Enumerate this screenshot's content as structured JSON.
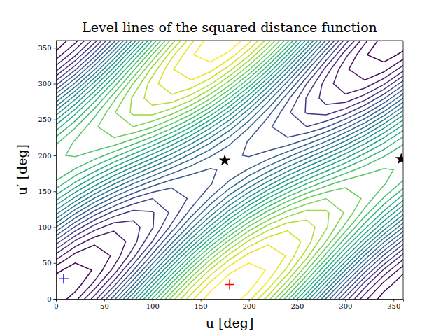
{
  "chart_data": {
    "type": "contour",
    "title": "Level lines of the squared distance function",
    "x_label": "u [deg]",
    "y_label": "u′ [deg]",
    "x": [
      0,
      20,
      40,
      60,
      80,
      100,
      120,
      140,
      160,
      180,
      200,
      220,
      240,
      260,
      280,
      300,
      320,
      340,
      360
    ],
    "y": [
      0,
      20,
      40,
      60,
      80,
      100,
      120,
      140,
      160,
      180,
      200,
      220,
      240,
      260,
      280,
      300,
      320,
      340,
      360
    ],
    "z": [
      [
        0.02,
        0.16,
        0.45,
        0.86,
        1.33,
        1.81,
        2.24,
        2.57,
        2.76,
        2.79,
        2.64,
        2.35,
        1.94,
        1.47,
        0.99,
        0.56,
        0.23,
        0.04,
        0.02
      ],
      [
        0.02,
        0.04,
        0.23,
        0.56,
        0.99,
        1.47,
        1.94,
        2.35,
        2.64,
        2.79,
        2.76,
        2.57,
        2.24,
        1.81,
        1.33,
        0.86,
        0.45,
        0.16,
        0.02
      ],
      [
        0.13,
        0.04,
        0.11,
        0.33,
        0.69,
        1.13,
        1.6,
        2.05,
        2.42,
        2.67,
        2.76,
        2.69,
        2.47,
        2.11,
        1.67,
        1.2,
        0.75,
        0.38,
        0.13
      ],
      [
        0.36,
        0.16,
        0.11,
        0.22,
        0.46,
        0.83,
        1.26,
        1.71,
        2.12,
        2.44,
        2.64,
        2.69,
        2.59,
        2.34,
        1.97,
        1.54,
        1.09,
        0.68,
        0.36
      ],
      [
        0.66,
        0.38,
        0.23,
        0.22,
        0.35,
        0.6,
        0.96,
        1.36,
        1.78,
        2.14,
        2.42,
        2.57,
        2.59,
        2.46,
        2.2,
        1.84,
        1.44,
        1.02,
        0.66
      ],
      [
        1.0,
        0.68,
        0.45,
        0.33,
        0.35,
        0.49,
        0.73,
        1.06,
        1.43,
        1.8,
        2.12,
        2.35,
        2.47,
        2.46,
        2.32,
        2.07,
        1.74,
        1.37,
        1.0
      ],
      [
        1.34,
        1.02,
        0.75,
        0.56,
        0.46,
        0.49,
        0.62,
        0.84,
        1.13,
        1.46,
        1.78,
        2.05,
        2.24,
        2.34,
        2.32,
        2.19,
        1.96,
        1.67,
        1.34
      ],
      [
        1.64,
        1.37,
        1.09,
        0.86,
        0.69,
        0.6,
        0.62,
        0.72,
        0.91,
        1.16,
        1.43,
        1.71,
        1.94,
        2.11,
        2.2,
        2.19,
        2.08,
        1.89,
        1.64
      ],
      [
        1.87,
        1.67,
        1.44,
        1.2,
        0.99,
        0.83,
        0.73,
        0.72,
        0.79,
        0.93,
        1.13,
        1.36,
        1.6,
        1.81,
        1.97,
        2.07,
        2.08,
        2.01,
        1.87
      ],
      [
        1.99,
        1.89,
        1.74,
        1.54,
        1.33,
        1.13,
        0.96,
        0.84,
        0.79,
        0.82,
        0.91,
        1.06,
        1.26,
        1.47,
        1.67,
        1.84,
        1.96,
        2.01,
        1.99
      ],
      [
        1.99,
        2.01,
        1.96,
        1.84,
        1.67,
        1.47,
        1.26,
        1.06,
        0.91,
        0.82,
        0.79,
        0.84,
        0.96,
        1.13,
        1.33,
        1.54,
        1.74,
        1.89,
        1.99
      ],
      [
        1.87,
        2.01,
        2.08,
        2.07,
        1.97,
        1.81,
        1.6,
        1.36,
        1.13,
        0.93,
        0.79,
        0.72,
        0.73,
        0.83,
        0.99,
        1.2,
        1.44,
        1.67,
        1.87
      ],
      [
        1.64,
        1.89,
        2.08,
        2.19,
        2.2,
        2.11,
        1.94,
        1.71,
        1.43,
        1.16,
        0.91,
        0.72,
        0.62,
        0.6,
        0.69,
        0.86,
        1.09,
        1.37,
        1.64
      ],
      [
        1.34,
        1.67,
        1.96,
        2.19,
        2.32,
        2.34,
        2.24,
        2.05,
        1.78,
        1.46,
        1.13,
        0.84,
        0.62,
        0.49,
        0.46,
        0.56,
        0.75,
        1.02,
        1.34
      ],
      [
        1.0,
        1.37,
        1.74,
        2.07,
        2.32,
        2.46,
        2.47,
        2.35,
        2.12,
        1.8,
        1.43,
        1.06,
        0.73,
        0.49,
        0.35,
        0.33,
        0.45,
        0.68,
        1.0
      ],
      [
        0.66,
        1.02,
        1.44,
        1.84,
        2.2,
        2.46,
        2.59,
        2.57,
        2.42,
        2.14,
        1.78,
        1.36,
        0.96,
        0.6,
        0.35,
        0.22,
        0.23,
        0.38,
        0.66
      ],
      [
        0.36,
        0.68,
        1.09,
        1.54,
        1.97,
        2.34,
        2.59,
        2.69,
        2.64,
        2.44,
        2.12,
        1.71,
        1.26,
        0.83,
        0.46,
        0.22,
        0.11,
        0.16,
        0.36
      ],
      [
        0.13,
        0.38,
        0.75,
        1.2,
        1.67,
        2.11,
        2.47,
        2.69,
        2.76,
        2.67,
        2.42,
        2.05,
        1.6,
        1.13,
        0.69,
        0.33,
        0.11,
        0.04,
        0.13
      ],
      [
        0.02,
        0.16,
        0.45,
        0.86,
        1.33,
        1.81,
        2.24,
        2.57,
        2.76,
        2.79,
        2.64,
        2.35,
        1.94,
        1.47,
        0.99,
        0.56,
        0.23,
        0.04,
        0.02
      ]
    ],
    "levels": [
      0.1,
      0.2,
      0.3,
      0.4,
      0.5,
      0.6,
      0.7,
      0.8,
      0.9,
      1.0,
      1.1,
      1.2,
      1.3,
      1.4,
      1.5,
      1.6,
      1.7,
      1.8,
      1.9,
      2.0,
      2.1,
      2.2,
      2.3,
      2.4,
      2.5,
      2.6,
      2.7
    ],
    "points": [
      {
        "x": 8,
        "y": 28,
        "color": "#0000ff",
        "marker": "plus"
      },
      {
        "x": 180,
        "y": 20,
        "color": "#ff0000",
        "marker": "plus"
      },
      {
        "x": 175,
        "y": 193,
        "color": "#000000",
        "marker": "star"
      },
      {
        "x": 358,
        "y": 195,
        "color": "#000000",
        "marker": "star"
      }
    ],
    "xlim": [
      0,
      360
    ],
    "ylim": [
      0,
      360
    ],
    "xticks": [
      0,
      50,
      100,
      150,
      200,
      250,
      300,
      350
    ],
    "yticks": [
      0,
      50,
      100,
      150,
      200,
      250,
      300,
      350
    ],
    "grid": false
  }
}
